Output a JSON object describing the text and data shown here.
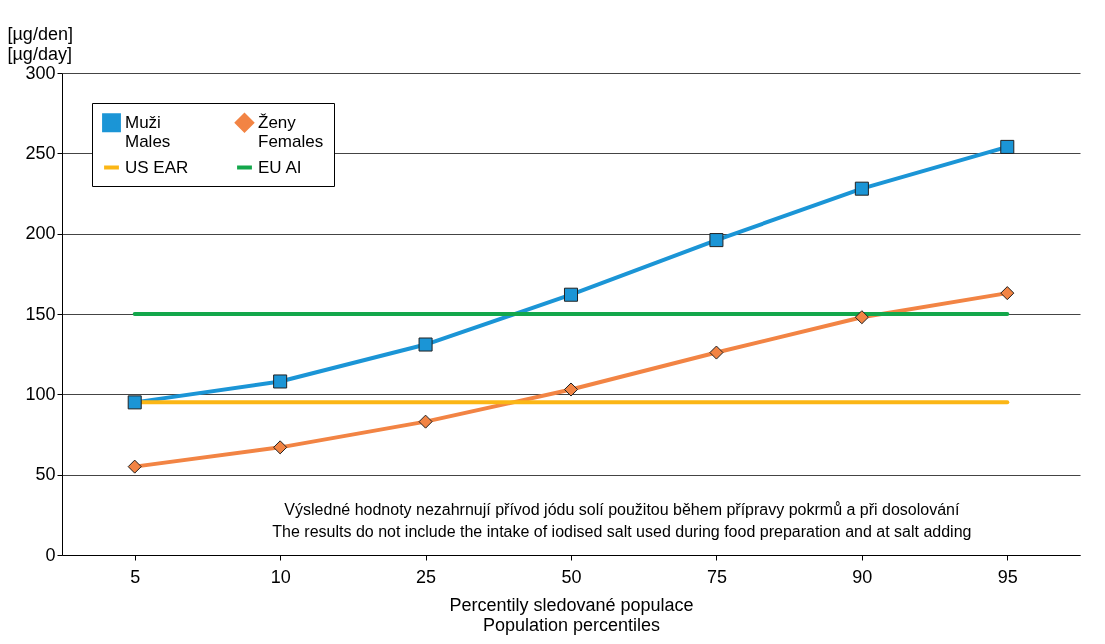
{
  "chart_data": {
    "type": "line",
    "ylabel": "[µg/den]\n[µg/day]",
    "xlabel": "Percentily sledované populace\nPopulation percentiles",
    "categories": [
      "5",
      "10",
      "25",
      "50",
      "75",
      "90",
      "95"
    ],
    "series": [
      {
        "name": "Muži\nMales",
        "color": "#1b95d6",
        "marker": "square",
        "values": [
          95,
          108,
          131,
          162,
          196,
          228,
          254
        ]
      },
      {
        "name": "Ženy\nFemales",
        "color": "#f28444",
        "marker": "diamond",
        "values": [
          55,
          67,
          83,
          103,
          126,
          148,
          163
        ]
      },
      {
        "name": "US EAR",
        "color": "#fbb615",
        "marker": "none",
        "values": [
          95,
          95,
          95,
          95,
          95,
          95,
          95
        ]
      },
      {
        "name": "EU AI",
        "color": "#13a74b",
        "marker": "none",
        "values": [
          150,
          150,
          150,
          150,
          150,
          150,
          150
        ]
      }
    ],
    "ylim": [
      0,
      300
    ],
    "yticks": [
      0,
      50,
      100,
      150,
      200,
      250,
      300
    ],
    "grid": "y",
    "legend": "top left",
    "annotations": [
      "Výsledné hodnoty nezahrnují přívod jódu solí použitou během přípravy pokrmů a při dosolování\nThe results do not include the intake of iodised salt used during food preparation and at salt adding"
    ]
  }
}
